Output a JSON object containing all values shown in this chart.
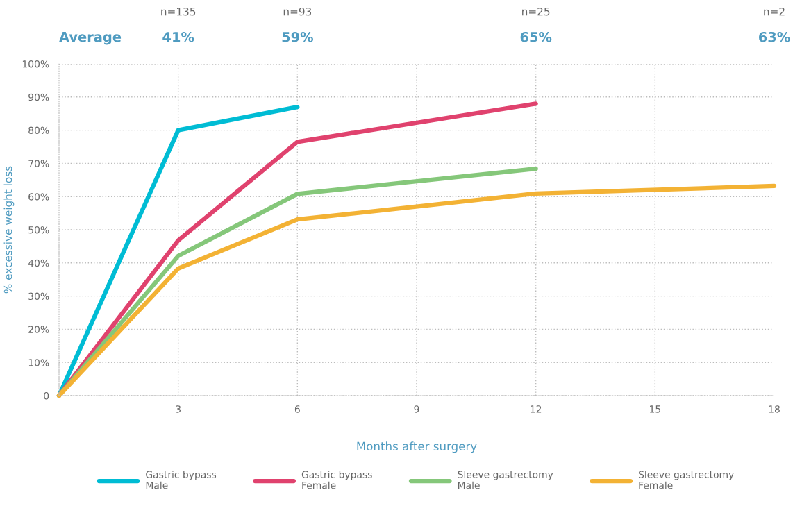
{
  "chart_data": {
    "type": "line",
    "xlabel": "Months after surgery",
    "ylabel": "% excessive weight loss",
    "xlim": [
      0,
      18
    ],
    "xticks": [
      3,
      6,
      9,
      12,
      15,
      18
    ],
    "ylim": [
      0,
      100
    ],
    "yticks": [
      0,
      {
        "value": 10,
        "label": "10%"
      },
      {
        "value": 20,
        "label": "20%"
      },
      {
        "value": 30,
        "label": "30%"
      },
      {
        "value": 40,
        "label": "40%"
      },
      {
        "value": 50,
        "label": "50%"
      },
      {
        "value": 60,
        "label": "60%"
      },
      {
        "value": 70,
        "label": "70%"
      },
      {
        "value": 80,
        "label": "80%"
      },
      {
        "value": 90,
        "label": "90%"
      },
      {
        "value": 100,
        "label": "100%"
      }
    ],
    "grid": true,
    "legend": "bottom",
    "marker": "none",
    "line_style": "solid",
    "series": [
      {
        "name": "Gastric bypass\nMale",
        "color": "#00bcd4",
        "x": [
          0,
          3,
          6
        ],
        "values": [
          0,
          80,
          87
        ]
      },
      {
        "name": "Gastric bypass\nFemale",
        "color": "#e0426e",
        "x": [
          0,
          3,
          6,
          12
        ],
        "values": [
          0,
          46.8,
          76.5,
          88
        ]
      },
      {
        "name": "Sleeve gastrectomy\nMale",
        "color": "#85c77a",
        "x": [
          0,
          3,
          6,
          12
        ],
        "values": [
          0,
          42.1,
          60.8,
          68.4
        ]
      },
      {
        "name": "Sleeve gastrectomy\nFemale",
        "color": "#f3b234",
        "x": [
          0,
          3,
          6,
          12,
          18
        ],
        "values": [
          0,
          38.3,
          53.1,
          60.9,
          63.2
        ]
      }
    ],
    "annotations": [
      "Average",
      "n=135",
      "41%",
      "n=93",
      "59%",
      "n=25",
      "65%",
      "n=2",
      "63%"
    ]
  }
}
